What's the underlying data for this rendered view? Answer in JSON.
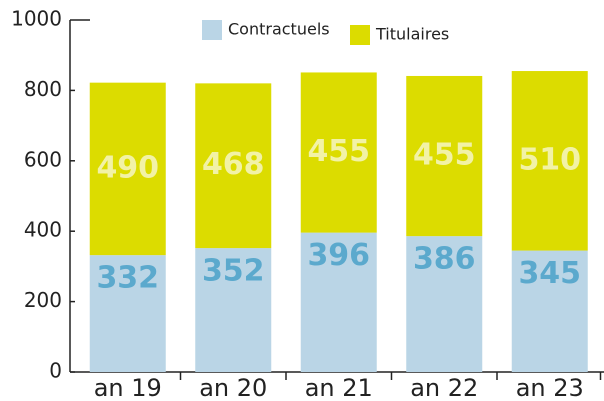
{
  "chart_data": {
    "type": "stacked_bar",
    "categories": [
      "an 19",
      "an 20",
      "an 21",
      "an 22",
      "an 23"
    ],
    "series": [
      {
        "name": "Contractuels",
        "color": "#bad5e6",
        "label_color": "#5ba9cd",
        "values": [
          332,
          352,
          396,
          386,
          345
        ]
      },
      {
        "name": "Titulaires",
        "color": "#dcdc00",
        "label_color": "#f2f2a6",
        "values": [
          490,
          468,
          455,
          455,
          510
        ]
      }
    ],
    "ylim": [
      0,
      1000
    ],
    "yticks": [
      0,
      200,
      400,
      600,
      800,
      1000
    ],
    "grid": false
  }
}
